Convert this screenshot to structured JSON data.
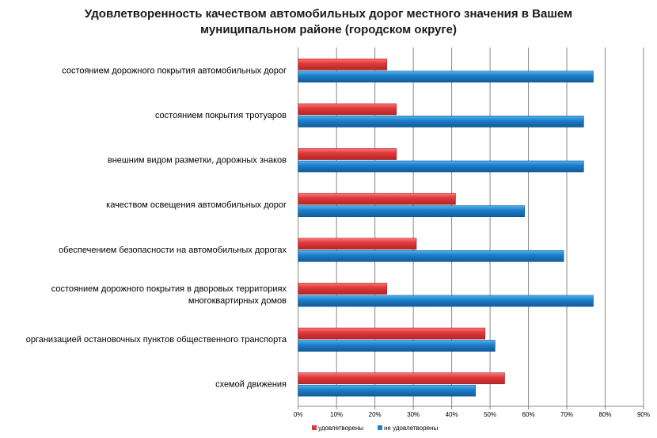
{
  "chart_data": {
    "type": "bar",
    "orientation": "horizontal",
    "title": "Удовлетворенность качеством автомобильных дорог местного значения  в Вашем муниципальном районе (городском округе)",
    "title_lines": [
      "Удовлетворенность качеством автомобильных дорог местного значения  в Вашем",
      "муниципальном районе (городском округе)"
    ],
    "categories": [
      [
        "состоянием дорожного покрытия автомобильных дорог"
      ],
      [
        "состоянием покрытия тротуаров"
      ],
      [
        "внешним  видом разметки, дорожных знаков"
      ],
      [
        "качеством освещения автомобильных дорог"
      ],
      [
        "обеспечением  безопасности на автомобильных дорогах"
      ],
      [
        "состоянием дорожного покрытия в дворовых территориях",
        "многоквартирных домов"
      ],
      [
        "организацией остановочных пунктов общественного транспорта"
      ],
      [
        "схемой движения"
      ]
    ],
    "series": [
      {
        "name": "удовлетворены",
        "color": "#e0393b",
        "values": [
          23.1,
          25.6,
          25.6,
          41.0,
          30.8,
          23.1,
          48.7,
          53.8
        ]
      },
      {
        "name": "не удовлетворены",
        "color": "#1f7fcb",
        "values": [
          76.9,
          74.4,
          74.4,
          59.0,
          69.2,
          76.9,
          51.3,
          46.2
        ]
      }
    ],
    "xlim": [
      0,
      90
    ],
    "xticks": [
      "0%",
      "10%",
      "20%",
      "30%",
      "40%",
      "50%",
      "60%",
      "70%",
      "80%",
      "90%"
    ],
    "grid": true,
    "legend": "bottom"
  }
}
